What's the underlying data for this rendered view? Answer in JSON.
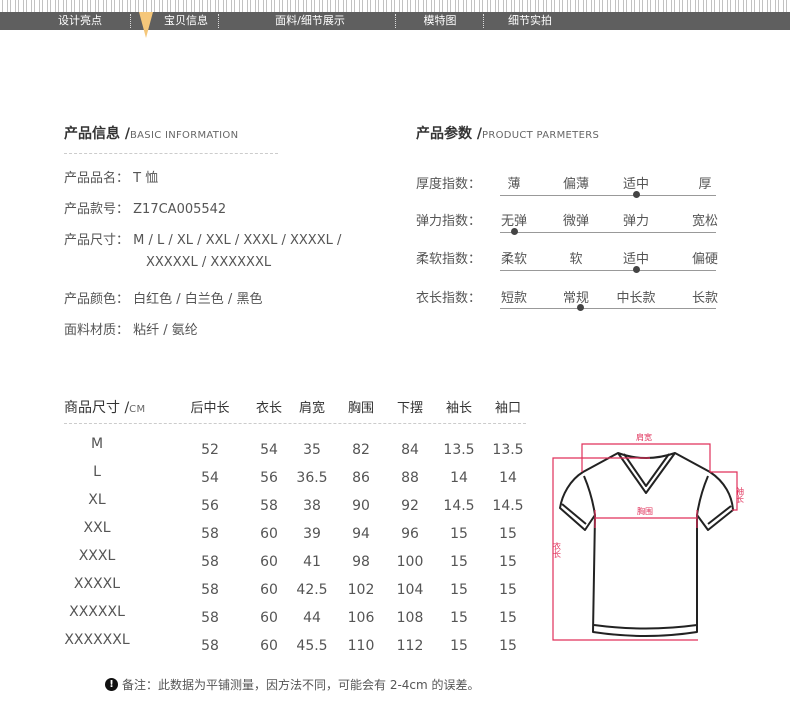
{
  "nav": {
    "items": [
      "设计亮点",
      "宝贝信息",
      "面料/细节展示",
      "模特图",
      "细节实拍"
    ],
    "active": "宝贝信息",
    "accent": "#f5c77a"
  },
  "basic": {
    "title": "产品信息 /",
    "subtitle": "BASIC INFORMATION",
    "rows": [
      {
        "label": "产品品名：",
        "value": "T 恤"
      },
      {
        "label": "产品款号：",
        "value": "Z17CA005542"
      },
      {
        "label": "产品尺寸：",
        "value": "M / L / XL / XXL / XXXL / XXXXL /",
        "value2": "XXXXXL / XXXXXXL"
      },
      {
        "label": "产品颜色：",
        "value": "白红色 / 白兰色 / 黑色"
      },
      {
        "label": "面料材质：",
        "value": "粘纤 / 氨纶"
      }
    ]
  },
  "params": {
    "title": "产品参数 /",
    "subtitle": "PRODUCT PARMETERS",
    "rows": [
      {
        "label": "厚度指数：",
        "options": [
          "薄",
          "偏薄",
          "适中",
          "厚"
        ],
        "selected": "适中"
      },
      {
        "label": "弹力指数：",
        "options": [
          "无弹",
          "微弹",
          "弹力",
          "宽松"
        ],
        "selected": "无弹"
      },
      {
        "label": "柔软指数：",
        "options": [
          "柔软",
          "软",
          "适中",
          "偏硬"
        ],
        "selected": "适中"
      },
      {
        "label": "衣长指数：",
        "options": [
          "短款",
          "常规",
          "中长款",
          "长款"
        ],
        "selected": "常规"
      }
    ]
  },
  "size_table": {
    "title": "商品尺寸 /",
    "unit": "CM",
    "headers": [
      "后中长",
      "衣长",
      "肩宽",
      "胸围",
      "下摆",
      "袖长",
      "袖口"
    ],
    "rows": [
      [
        "M",
        "52",
        "54",
        "35",
        "82",
        "84",
        "13.5",
        "13.5"
      ],
      [
        "L",
        "54",
        "56",
        "36.5",
        "86",
        "88",
        "14",
        "14"
      ],
      [
        "XL",
        "56",
        "58",
        "38",
        "90",
        "92",
        "14.5",
        "14.5"
      ],
      [
        "XXL",
        "58",
        "60",
        "39",
        "94",
        "96",
        "15",
        "15"
      ],
      [
        "XXXL",
        "58",
        "60",
        "41",
        "98",
        "100",
        "15",
        "15"
      ],
      [
        "XXXXL",
        "58",
        "60",
        "42.5",
        "102",
        "104",
        "15",
        "15"
      ],
      [
        "XXXXXL",
        "58",
        "60",
        "44",
        "106",
        "108",
        "15",
        "15"
      ],
      [
        "XXXXXXL",
        "58",
        "60",
        "45.5",
        "110",
        "112",
        "15",
        "15"
      ]
    ]
  },
  "diagram": {
    "shoulder": "肩宽",
    "chest": "胸围",
    "length": "衣长",
    "sleeve": "袖长",
    "color": "#e0305a"
  },
  "note": {
    "icon": "exclamation-icon",
    "text": "备注：此数据为平铺测量，因方法不同，可能会有 2-4cm 的误差。"
  }
}
